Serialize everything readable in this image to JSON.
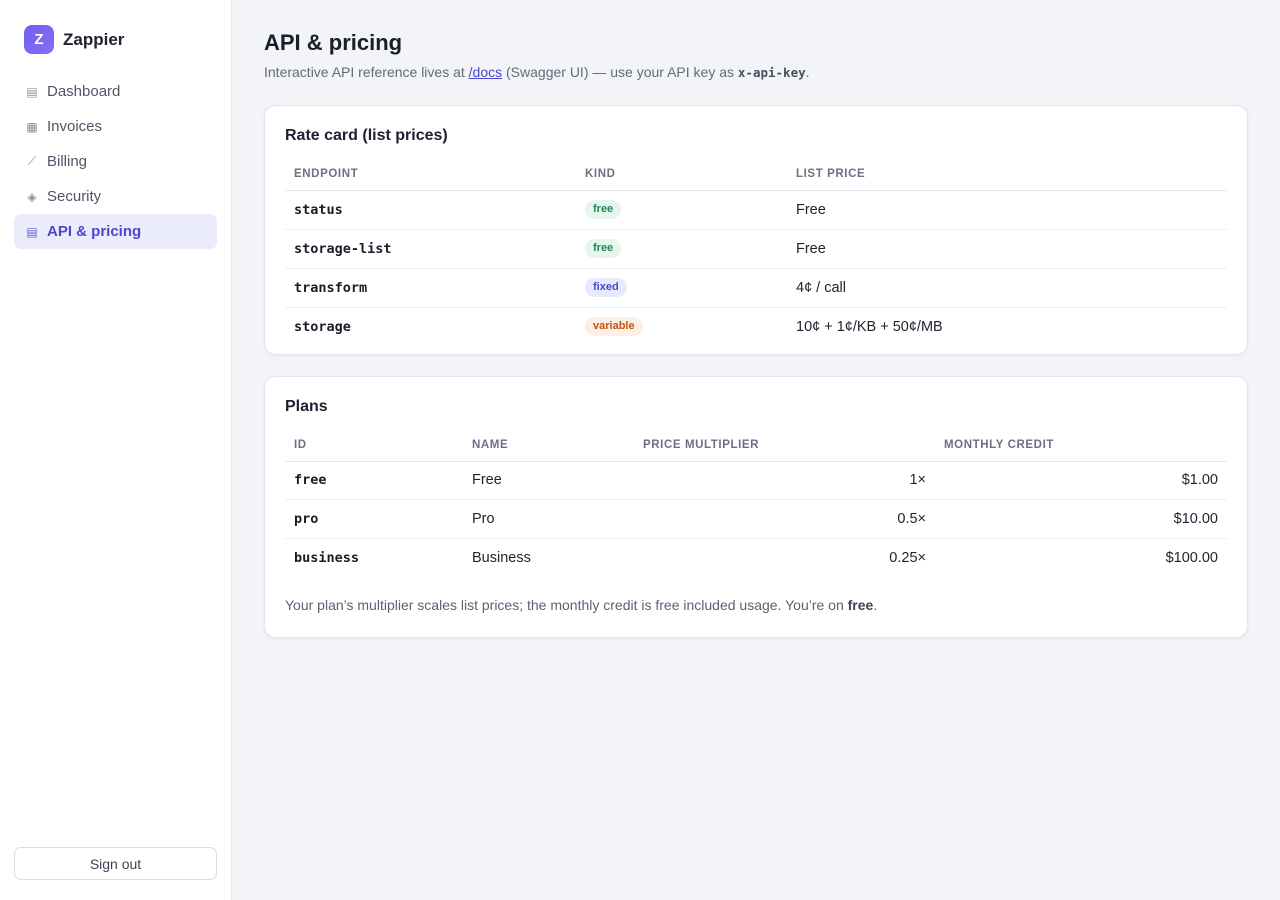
{
  "brand": {
    "initial": "Z",
    "name": "Zappier"
  },
  "nav": {
    "items": [
      {
        "label": "Dashboard",
        "icon": "list-icon",
        "glyph": "▤",
        "active": false
      },
      {
        "label": "Invoices",
        "icon": "grid-icon",
        "glyph": "▦",
        "active": false
      },
      {
        "label": "Billing",
        "icon": "trend-icon",
        "glyph": "⟋",
        "active": false
      },
      {
        "label": "Security",
        "icon": "diamond-icon",
        "glyph": "◈",
        "active": false
      },
      {
        "label": "API & pricing",
        "icon": "list-icon",
        "glyph": "▤",
        "active": true
      }
    ],
    "signout_label": "Sign out"
  },
  "page": {
    "title": "API & pricing",
    "subtitle_prefix": "Interactive API reference lives at ",
    "subtitle_link": "/docs",
    "subtitle_middle": " (Swagger UI) — use your API key as ",
    "subtitle_code": "x-api-key",
    "subtitle_suffix": "."
  },
  "rate_card": {
    "title": "Rate card (list prices)",
    "headers": [
      "ENDPOINT",
      "KIND",
      "LIST PRICE"
    ],
    "rows": [
      {
        "endpoint": "status",
        "kind": "free",
        "price": "Free"
      },
      {
        "endpoint": "storage-list",
        "kind": "free",
        "price": "Free"
      },
      {
        "endpoint": "transform",
        "kind": "fixed",
        "price": "4¢ / call"
      },
      {
        "endpoint": "storage",
        "kind": "variable",
        "price": "10¢ + 1¢/KB + 50¢/MB"
      }
    ]
  },
  "plans": {
    "title": "Plans",
    "headers": [
      "ID",
      "NAME",
      "PRICE MULTIPLIER",
      "MONTHLY CREDIT"
    ],
    "rows": [
      {
        "id": "free",
        "name": "Free",
        "multiplier": "1×",
        "credit": "$1.00"
      },
      {
        "id": "pro",
        "name": "Pro",
        "multiplier": "0.5×",
        "credit": "$10.00"
      },
      {
        "id": "business",
        "name": "Business",
        "multiplier": "0.25×",
        "credit": "$100.00"
      }
    ],
    "note_prefix": "Your plan’s multiplier scales list prices; the monthly credit is free included usage. You’re on ",
    "note_plan": "free",
    "note_suffix": "."
  },
  "colors": {
    "accent": "#4b46cf",
    "badge_free": "#1d8a55",
    "badge_fixed": "#4b46cf",
    "badge_variable": "#c45310"
  }
}
